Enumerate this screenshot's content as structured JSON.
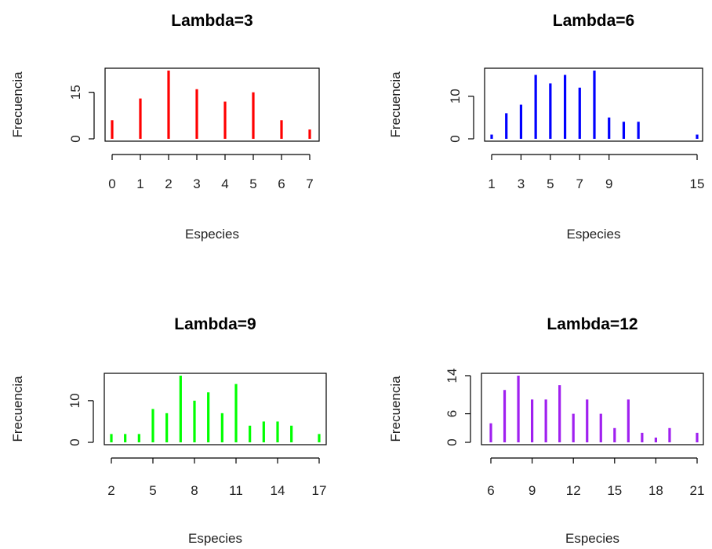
{
  "chart_data": [
    {
      "type": "bar",
      "title": "Lambda=3",
      "xlabel": "Especies",
      "ylabel": "Frecuencia",
      "color": "#ff0000",
      "x": [
        0,
        1,
        2,
        3,
        4,
        5,
        6,
        7
      ],
      "values": [
        6,
        13,
        22,
        16,
        12,
        15,
        6,
        3
      ],
      "xlim": [
        0,
        7
      ],
      "ylim": [
        0,
        22
      ],
      "xticks": [
        "0",
        "1",
        "2",
        "3",
        "4",
        "5",
        "6",
        "7"
      ],
      "yticks": [
        "0",
        "15"
      ],
      "grid": false,
      "legend": "none"
    },
    {
      "type": "bar",
      "title": "Lambda=6",
      "xlabel": "Especies",
      "ylabel": "Frecuencia",
      "color": "#0000ff",
      "x": [
        1,
        2,
        3,
        4,
        5,
        6,
        7,
        8,
        9,
        10,
        11,
        15
      ],
      "values": [
        1,
        6,
        8,
        15,
        13,
        15,
        12,
        16,
        5,
        4,
        4,
        1
      ],
      "xlim": [
        1,
        15
      ],
      "ylim": [
        0,
        16
      ],
      "xticks": [
        "1",
        "3",
        "5",
        "7",
        "9",
        "15"
      ],
      "yticks": [
        "0",
        "10"
      ],
      "grid": false,
      "legend": "none"
    },
    {
      "type": "bar",
      "title": "Lambda=9",
      "xlabel": "Especies",
      "ylabel": "Frecuencia",
      "color": "#00ff00",
      "x": [
        2,
        3,
        4,
        5,
        6,
        7,
        8,
        9,
        10,
        11,
        12,
        13,
        14,
        15,
        17
      ],
      "values": [
        2,
        2,
        2,
        8,
        7,
        16,
        10,
        12,
        7,
        14,
        4,
        5,
        5,
        4,
        2
      ],
      "xlim": [
        2,
        17
      ],
      "ylim": [
        0,
        16
      ],
      "xticks": [
        "2",
        "5",
        "8",
        "11",
        "14",
        "17"
      ],
      "yticks": [
        "0",
        "10"
      ],
      "grid": false,
      "legend": "none"
    },
    {
      "type": "bar",
      "title": "Lambda=12",
      "xlabel": "Especies",
      "ylabel": "Frecuencia",
      "color": "#a020f0",
      "x": [
        6,
        7,
        8,
        9,
        10,
        11,
        12,
        13,
        14,
        15,
        16,
        17,
        18,
        19,
        21
      ],
      "values": [
        4,
        11,
        14,
        9,
        9,
        12,
        6,
        9,
        6,
        3,
        9,
        2,
        1,
        3,
        2
      ],
      "xlim": [
        6,
        21
      ],
      "ylim": [
        0,
        14
      ],
      "xticks": [
        "6",
        "9",
        "12",
        "15",
        "18",
        "21"
      ],
      "yticks": [
        "0",
        "6",
        "14"
      ],
      "grid": false,
      "legend": "none"
    }
  ]
}
